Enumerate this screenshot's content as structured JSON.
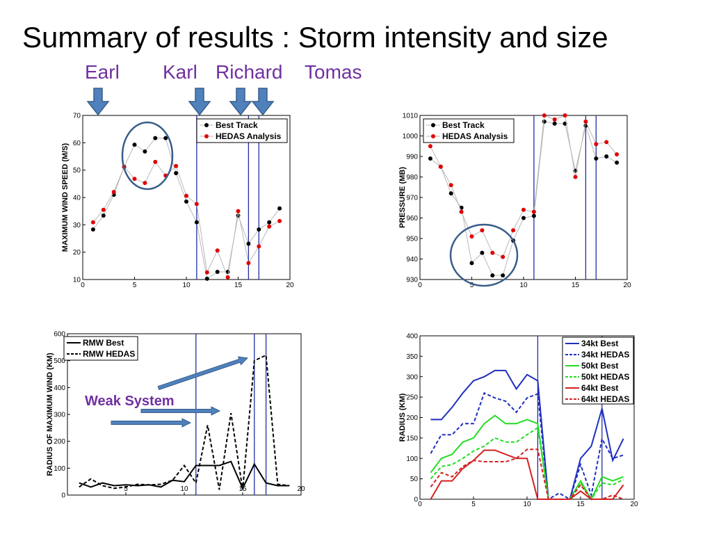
{
  "title": "Summary of results : Storm intensity and size",
  "storms": [
    "Earl",
    "Karl",
    "Richard",
    "Tomas"
  ],
  "colors": {
    "storm_label": "#7030a0",
    "arrow_fill": "#4f81bd",
    "arrow_stroke": "#385d8a",
    "vline": "#1f2f9f",
    "best": "#000000",
    "hedas": "#e00000"
  },
  "annotation": "Weak System",
  "chart_data": [
    {
      "type": "line",
      "ylabel": "MAXIMUM WIND SPEED (M/S)",
      "xlim": [
        0,
        20
      ],
      "ylim": [
        10,
        70
      ],
      "xticks": [
        0,
        5,
        10,
        15,
        20
      ],
      "yticks": [
        10,
        20,
        30,
        40,
        50,
        60,
        70
      ],
      "storm_lines": [
        11,
        16,
        17
      ],
      "legend": "top-right",
      "series": [
        {
          "name": "Best Track",
          "color": "#000000",
          "x": [
            1,
            2,
            3,
            4,
            5,
            6,
            7,
            8,
            9,
            10,
            11,
            12,
            13,
            14,
            15,
            16,
            17,
            18,
            19
          ],
          "y": [
            28.3,
            33.4,
            41.0,
            51.2,
            59.3,
            56.8,
            61.7,
            61.7,
            48.9,
            38.5,
            30.9,
            10.3,
            12.8,
            12.8,
            33.4,
            23.1,
            28.3,
            30.9,
            36.0
          ]
        },
        {
          "name": "HEDAS Analysis",
          "color": "#e00000",
          "x": [
            1,
            2,
            3,
            4,
            5,
            6,
            7,
            8,
            9,
            10,
            11,
            12,
            13,
            14,
            15,
            16,
            17,
            18,
            19
          ],
          "y": [
            30.9,
            35.5,
            42.0,
            51.2,
            46.8,
            45.3,
            53.0,
            48.0,
            51.5,
            40.6,
            37.6,
            12.6,
            20.6,
            10.8,
            35.0,
            16.0,
            22.1,
            29.4,
            31.4
          ]
        }
      ]
    },
    {
      "type": "line",
      "ylabel": "PRESSURE (MB)",
      "xlim": [
        0,
        20
      ],
      "ylim": [
        930,
        1010
      ],
      "xticks": [
        0,
        5,
        10,
        15,
        20
      ],
      "yticks": [
        930,
        940,
        950,
        960,
        970,
        980,
        990,
        1000,
        1010
      ],
      "storm_lines": [
        11,
        16,
        17
      ],
      "legend": "top-left",
      "series": [
        {
          "name": "Best Track",
          "color": "#000000",
          "x": [
            1,
            2,
            3,
            4,
            5,
            6,
            7,
            8,
            9,
            10,
            11,
            12,
            13,
            14,
            15,
            16,
            17,
            18,
            19
          ],
          "y": [
            989,
            985,
            972,
            965,
            938,
            943,
            932,
            932,
            949,
            960,
            961,
            1007,
            1006,
            1006,
            983,
            1005,
            989,
            990,
            987
          ]
        },
        {
          "name": "HEDAS Analysis",
          "color": "#e00000",
          "x": [
            1,
            2,
            3,
            4,
            5,
            6,
            7,
            8,
            9,
            10,
            11,
            12,
            13,
            14,
            15,
            16,
            17,
            18,
            19
          ],
          "y": [
            995,
            985,
            976,
            963,
            951,
            954,
            943,
            941,
            954,
            964,
            963,
            1010,
            1008,
            1010,
            980,
            1007,
            996,
            997,
            991
          ]
        }
      ]
    },
    {
      "type": "line",
      "ylabel": "RADIUS OF MAXIMUM WIND (KM)",
      "xlim": [
        0,
        20
      ],
      "ylim": [
        0,
        600
      ],
      "xticks": [
        5,
        10,
        15,
        20
      ],
      "yticks": [
        0,
        100,
        200,
        300,
        400,
        500,
        600
      ],
      "storm_lines": [
        11,
        16,
        17
      ],
      "legend": "top-left",
      "series": [
        {
          "name": "RMW Best",
          "color": "#000000",
          "dash": "solid",
          "x": [
            1,
            2,
            3,
            4,
            5,
            6,
            7,
            8,
            9,
            10,
            11,
            12,
            13,
            14,
            15,
            16,
            17,
            18,
            19
          ],
          "y": [
            45,
            30,
            45,
            35,
            38,
            35,
            38,
            30,
            55,
            50,
            110,
            110,
            110,
            125,
            25,
            115,
            45,
            35,
            35
          ]
        },
        {
          "name": "RMW HEDAS",
          "color": "#000000",
          "dash": "dashed",
          "x": [
            1,
            2,
            3,
            4,
            5,
            6,
            7,
            8,
            9,
            10,
            11,
            12,
            13,
            14,
            15,
            16,
            17,
            18,
            19
          ],
          "y": [
            30,
            60,
            35,
            25,
            30,
            40,
            38,
            40,
            55,
            110,
            45,
            260,
            20,
            305,
            20,
            500,
            520,
            40,
            35
          ]
        }
      ]
    },
    {
      "type": "line",
      "ylabel": "RADIUS (KM)",
      "xlim": [
        0,
        20
      ],
      "ylim": [
        0,
        400
      ],
      "xticks": [
        0,
        5,
        10,
        15,
        20
      ],
      "yticks": [
        0,
        50,
        100,
        150,
        200,
        250,
        300,
        350,
        400
      ],
      "storm_lines": [
        11,
        17
      ],
      "legend": "top-right",
      "series": [
        {
          "name": "34kt Best",
          "color": "#1f2fbf",
          "dash": "solid",
          "x": [
            1,
            2,
            3,
            4,
            5,
            6,
            7,
            8,
            9,
            10,
            11,
            12,
            13,
            14,
            15,
            16,
            17,
            18,
            19
          ],
          "y": [
            195,
            195,
            225,
            260,
            290,
            300,
            315,
            315,
            270,
            305,
            290,
            0,
            0,
            0,
            100,
            130,
            222,
            95,
            148
          ]
        },
        {
          "name": "34kt HEDAS",
          "color": "#1f2fbf",
          "dash": "dashed",
          "x": [
            1,
            2,
            3,
            4,
            5,
            6,
            7,
            8,
            9,
            10,
            11,
            12,
            13,
            14,
            15,
            16,
            17,
            18,
            19
          ],
          "y": [
            112,
            158,
            158,
            185,
            185,
            260,
            248,
            240,
            213,
            248,
            258,
            0,
            15,
            0,
            85,
            10,
            148,
            100,
            108
          ]
        },
        {
          "name": "50kt Best",
          "color": "#22dd22",
          "dash": "solid",
          "x": [
            1,
            2,
            3,
            4,
            5,
            6,
            7,
            8,
            9,
            10,
            11,
            12,
            13,
            14,
            15,
            16,
            17,
            18,
            19
          ],
          "y": [
            65,
            100,
            110,
            140,
            150,
            185,
            205,
            185,
            185,
            195,
            185,
            0,
            0,
            0,
            45,
            0,
            55,
            45,
            55
          ]
        },
        {
          "name": "50kt HEDAS",
          "color": "#22dd22",
          "dash": "dashed",
          "x": [
            1,
            2,
            3,
            4,
            5,
            6,
            7,
            8,
            9,
            10,
            11,
            12,
            13,
            14,
            15,
            16,
            17,
            18,
            19
          ],
          "y": [
            50,
            80,
            85,
            100,
            118,
            130,
            150,
            140,
            140,
            158,
            175,
            0,
            0,
            0,
            40,
            0,
            40,
            35,
            48
          ]
        },
        {
          "name": "64kt Best",
          "color": "#d42020",
          "dash": "solid",
          "x": [
            1,
            2,
            3,
            4,
            5,
            6,
            7,
            8,
            9,
            10,
            11,
            12,
            13,
            14,
            15,
            16,
            17,
            18,
            19
          ],
          "y": [
            0,
            45,
            45,
            75,
            95,
            120,
            120,
            110,
            100,
            100,
            0,
            0,
            0,
            0,
            20,
            0,
            0,
            0,
            35
          ]
        },
        {
          "name": "64kt HEDAS",
          "color": "#d42020",
          "dash": "dashed",
          "x": [
            1,
            2,
            3,
            4,
            5,
            6,
            7,
            8,
            9,
            10,
            11,
            12,
            13,
            14,
            15,
            16,
            17,
            18,
            19
          ],
          "y": [
            30,
            65,
            55,
            80,
            95,
            92,
            92,
            92,
            100,
            122,
            122,
            0,
            0,
            0,
            35,
            0,
            0,
            10,
            0
          ]
        }
      ]
    }
  ]
}
